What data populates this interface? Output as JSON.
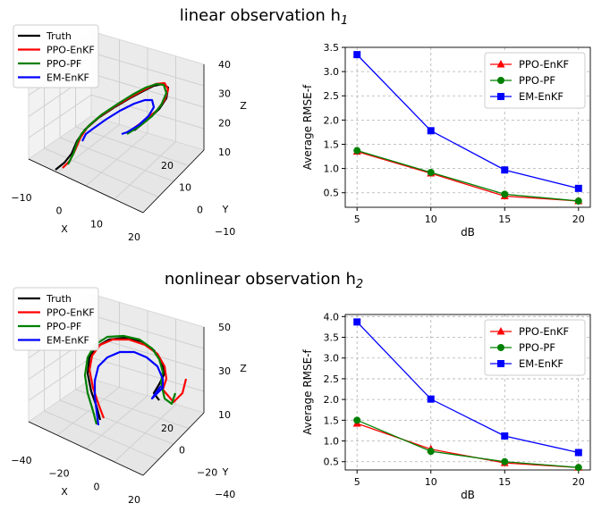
{
  "colors": {
    "truth": "#000000",
    "ppo_enkf": "#ff0000",
    "ppo_pf": "#008000",
    "em_enkf": "#0000ff",
    "grid": "#b0b0b0",
    "pane": "#f2f2f2"
  },
  "panels": [
    {
      "title": "linear observation h",
      "title_sub": "1",
      "plot3d": {
        "legend": [
          "Truth",
          "PPO-EnKF",
          "PPO-PF",
          "EM-EnKF"
        ],
        "x_label": "X",
        "y_label": "Y",
        "z_label": "Z",
        "x_ticks": [
          "−10",
          "0",
          "10",
          "20"
        ],
        "y_ticks": [
          "−10",
          "0",
          "10",
          "20"
        ],
        "z_ticks": [
          "10",
          "20",
          "30",
          "40"
        ]
      }
    },
    {
      "title": "nonlinear observation h",
      "title_sub": "2",
      "plot3d": {
        "legend": [
          "Truth",
          "PPO-EnKF",
          "PPO-PF",
          "EM-EnKF"
        ],
        "x_label": "X",
        "y_label": "Y",
        "z_label": "Z",
        "x_ticks": [
          "−40",
          "−20",
          "0",
          "20"
        ],
        "y_ticks": [
          "−40",
          "−20",
          "0",
          "20"
        ],
        "z_ticks": [
          "10",
          "30",
          "50"
        ]
      }
    }
  ],
  "chart_data": [
    {
      "type": "line",
      "xlabel": "dB",
      "ylabel": "Average RMSE-f",
      "x": [
        5,
        10,
        15,
        20
      ],
      "ylim": [
        0.2,
        3.5
      ],
      "y_ticks": [
        0.5,
        1.0,
        1.5,
        2.0,
        2.5,
        3.0,
        3.5
      ],
      "x_ticks": [
        5,
        10,
        15,
        20
      ],
      "grid": true,
      "legend_position": "top-right",
      "series": [
        {
          "name": "PPO-EnKF",
          "marker": "triangle",
          "values": [
            1.35,
            0.9,
            0.43,
            0.33
          ]
        },
        {
          "name": "PPO-PF",
          "marker": "circle",
          "values": [
            1.37,
            0.92,
            0.47,
            0.33
          ]
        },
        {
          "name": "EM-EnKF",
          "marker": "square",
          "values": [
            3.35,
            1.78,
            0.97,
            0.59
          ]
        }
      ]
    },
    {
      "type": "line",
      "xlabel": "dB",
      "ylabel": "Average RMSE-f",
      "x": [
        5,
        10,
        15,
        20
      ],
      "ylim": [
        0.3,
        4.05
      ],
      "y_ticks": [
        0.5,
        1.0,
        1.5,
        2.0,
        2.5,
        3.0,
        3.5,
        4.0
      ],
      "x_ticks": [
        5,
        10,
        15,
        20
      ],
      "grid": true,
      "legend_position": "top-right",
      "series": [
        {
          "name": "PPO-EnKF",
          "marker": "triangle",
          "values": [
            1.42,
            0.8,
            0.47,
            0.36
          ]
        },
        {
          "name": "PPO-PF",
          "marker": "circle",
          "values": [
            1.5,
            0.75,
            0.5,
            0.36
          ]
        },
        {
          "name": "EM-EnKF",
          "marker": "square",
          "values": [
            3.87,
            2.01,
            1.12,
            0.72
          ]
        }
      ]
    }
  ]
}
